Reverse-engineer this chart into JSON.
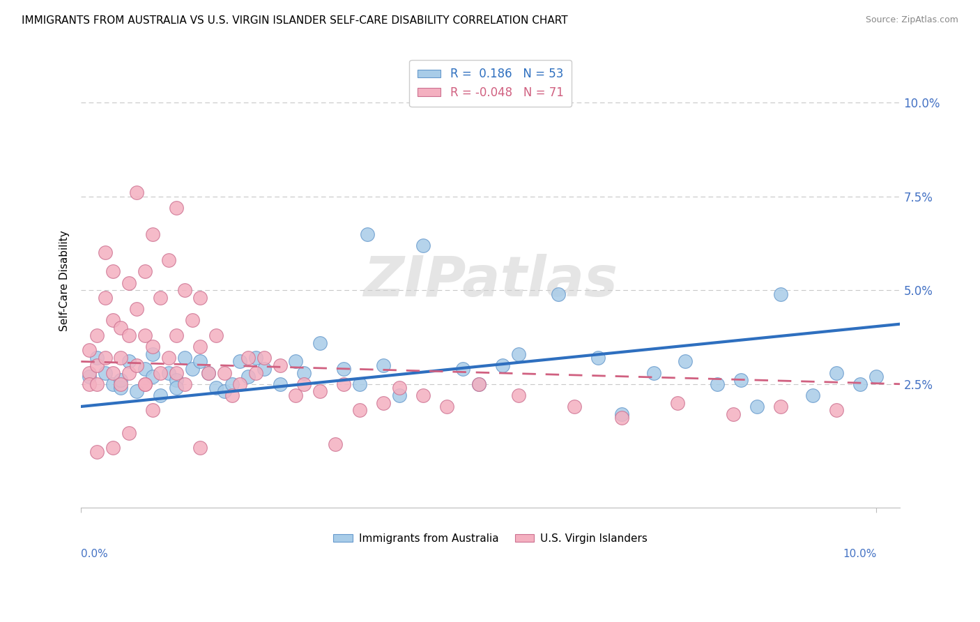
{
  "title": "IMMIGRANTS FROM AUSTRALIA VS U.S. VIRGIN ISLANDER SELF-CARE DISABILITY CORRELATION CHART",
  "source": "Source: ZipAtlas.com",
  "ylabel": "Self-Care Disability",
  "xlim": [
    0.0,
    0.103
  ],
  "ylim": [
    -0.008,
    0.113
  ],
  "yticks": [
    0.025,
    0.05,
    0.075,
    0.1
  ],
  "ytick_labels": [
    "2.5%",
    "5.0%",
    "7.5%",
    "10.0%"
  ],
  "blue_label": "Immigrants from Australia",
  "pink_label": "U.S. Virgin Islanders",
  "blue_R": "0.186",
  "blue_N": "53",
  "pink_R": "-0.048",
  "pink_N": "71",
  "blue_color": "#A8CCE8",
  "blue_edge": "#6699CC",
  "blue_line": "#2E6FBF",
  "pink_color": "#F4B0C0",
  "pink_edge": "#CC7090",
  "pink_line": "#D06080",
  "watermark": "ZIPatlas",
  "bg_color": "#FFFFFF",
  "grid_color": "#C8C8C8",
  "tick_color": "#4472C4",
  "title_fontsize": 11,
  "blue_x": [
    0.001,
    0.002,
    0.003,
    0.004,
    0.005,
    0.005,
    0.006,
    0.007,
    0.008,
    0.009,
    0.009,
    0.01,
    0.011,
    0.012,
    0.012,
    0.013,
    0.014,
    0.015,
    0.016,
    0.017,
    0.018,
    0.019,
    0.02,
    0.021,
    0.022,
    0.023,
    0.025,
    0.027,
    0.028,
    0.03,
    0.033,
    0.035,
    0.036,
    0.038,
    0.04,
    0.043,
    0.048,
    0.05,
    0.053,
    0.055,
    0.06,
    0.065,
    0.068,
    0.072,
    0.076,
    0.08,
    0.083,
    0.085,
    0.088,
    0.092,
    0.095,
    0.098,
    0.1
  ],
  "blue_y": [
    0.027,
    0.032,
    0.028,
    0.025,
    0.024,
    0.026,
    0.031,
    0.023,
    0.029,
    0.033,
    0.027,
    0.022,
    0.028,
    0.026,
    0.024,
    0.032,
    0.029,
    0.031,
    0.028,
    0.024,
    0.023,
    0.025,
    0.031,
    0.027,
    0.032,
    0.029,
    0.025,
    0.031,
    0.028,
    0.036,
    0.029,
    0.025,
    0.065,
    0.03,
    0.022,
    0.062,
    0.029,
    0.025,
    0.03,
    0.033,
    0.049,
    0.032,
    0.017,
    0.028,
    0.031,
    0.025,
    0.026,
    0.019,
    0.049,
    0.022,
    0.028,
    0.025,
    0.027
  ],
  "pink_x": [
    0.001,
    0.001,
    0.001,
    0.002,
    0.002,
    0.002,
    0.003,
    0.003,
    0.003,
    0.004,
    0.004,
    0.004,
    0.005,
    0.005,
    0.005,
    0.006,
    0.006,
    0.006,
    0.007,
    0.007,
    0.008,
    0.008,
    0.008,
    0.009,
    0.009,
    0.01,
    0.01,
    0.011,
    0.011,
    0.012,
    0.012,
    0.013,
    0.013,
    0.014,
    0.015,
    0.015,
    0.016,
    0.017,
    0.018,
    0.019,
    0.02,
    0.021,
    0.022,
    0.023,
    0.025,
    0.027,
    0.028,
    0.03,
    0.033,
    0.035,
    0.038,
    0.04,
    0.043,
    0.046,
    0.05,
    0.055,
    0.062,
    0.068,
    0.075,
    0.082,
    0.088,
    0.095,
    0.032,
    0.015,
    0.007,
    0.012,
    0.008,
    0.009,
    0.006,
    0.004,
    0.002
  ],
  "pink_y": [
    0.034,
    0.028,
    0.025,
    0.038,
    0.03,
    0.025,
    0.06,
    0.048,
    0.032,
    0.055,
    0.042,
    0.028,
    0.04,
    0.032,
    0.025,
    0.052,
    0.038,
    0.028,
    0.045,
    0.03,
    0.055,
    0.038,
    0.025,
    0.065,
    0.035,
    0.048,
    0.028,
    0.058,
    0.032,
    0.072,
    0.038,
    0.05,
    0.025,
    0.042,
    0.048,
    0.035,
    0.028,
    0.038,
    0.028,
    0.022,
    0.025,
    0.032,
    0.028,
    0.032,
    0.03,
    0.022,
    0.025,
    0.023,
    0.025,
    0.018,
    0.02,
    0.024,
    0.022,
    0.019,
    0.025,
    0.022,
    0.019,
    0.016,
    0.02,
    0.017,
    0.019,
    0.018,
    0.009,
    0.008,
    0.076,
    0.028,
    0.025,
    0.018,
    0.012,
    0.008,
    0.007
  ],
  "blue_trend_x": [
    0.0,
    0.103
  ],
  "blue_trend_y": [
    0.019,
    0.041
  ],
  "pink_trend_x": [
    0.0,
    0.103
  ],
  "pink_trend_y": [
    0.031,
    0.025
  ],
  "source_text": "Source: ZipAtlas.com"
}
